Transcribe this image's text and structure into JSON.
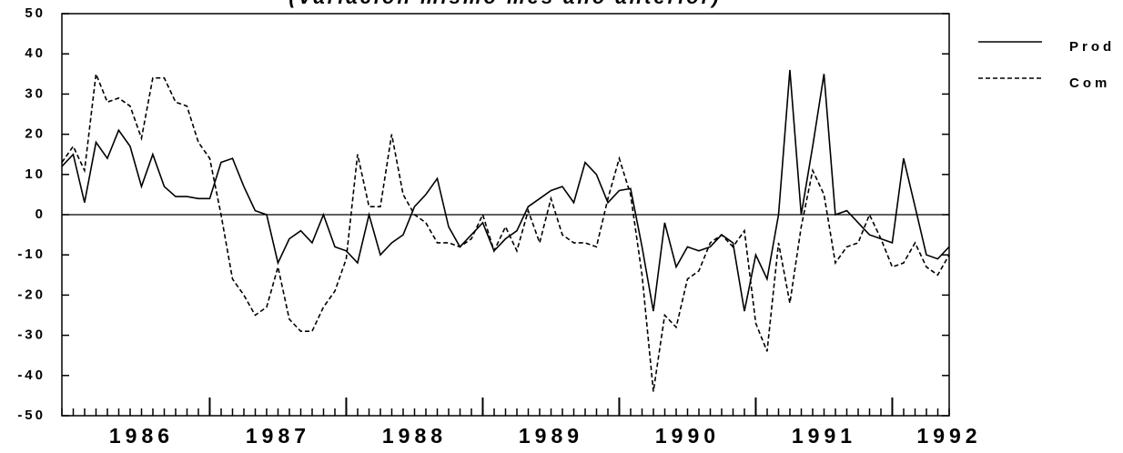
{
  "chart_data": {
    "type": "line",
    "title": "(Variación mismo mes año anterior)",
    "x": [
      1985.917,
      1986,
      1986.083,
      1986.167,
      1986.25,
      1986.333,
      1986.417,
      1986.5,
      1986.583,
      1986.667,
      1986.75,
      1986.833,
      1986.917,
      1987,
      1987.083,
      1987.167,
      1987.25,
      1987.333,
      1987.417,
      1987.5,
      1987.583,
      1987.667,
      1987.75,
      1987.833,
      1987.917,
      1988,
      1988.083,
      1988.167,
      1988.25,
      1988.333,
      1988.417,
      1988.5,
      1988.583,
      1988.667,
      1988.75,
      1988.833,
      1988.917,
      1989,
      1989.083,
      1989.167,
      1989.25,
      1989.333,
      1989.417,
      1989.5,
      1989.583,
      1989.667,
      1989.75,
      1989.833,
      1989.917,
      1990,
      1990.083,
      1990.167,
      1990.25,
      1990.333,
      1990.417,
      1990.5,
      1990.583,
      1990.667,
      1990.75,
      1990.833,
      1990.917,
      1991,
      1991.083,
      1991.167,
      1991.25,
      1991.333,
      1991.417,
      1991.5,
      1991.583,
      1991.667,
      1991.75,
      1991.833,
      1991.917,
      1992,
      1992.083,
      1992.167,
      1992.25,
      1992.333,
      1992.417
    ],
    "series": [
      {
        "name": "Prod",
        "color": "#000000",
        "dash": "solid",
        "values": [
          12,
          15,
          3,
          18,
          14,
          21,
          17,
          7,
          15,
          7,
          4.5,
          4.5,
          4,
          4,
          13,
          14,
          7,
          1,
          0,
          -12,
          -6,
          -4,
          -7,
          0,
          -8,
          -9,
          -12,
          0,
          -10,
          -7,
          -5,
          2,
          5,
          9,
          -3,
          -8,
          -5,
          -2,
          -9,
          -6,
          -4,
          2,
          4,
          6,
          7,
          3,
          13,
          10,
          3,
          6,
          6.5,
          -8,
          -24,
          -2,
          -13,
          -8,
          -9,
          -8,
          -5,
          -7,
          -24,
          -10,
          -16,
          0,
          36,
          0,
          17,
          35,
          0,
          1,
          -2,
          -5,
          -6,
          -7,
          14,
          2,
          -10,
          -11,
          -8
        ]
      },
      {
        "name": "Com",
        "color": "#000000",
        "dash": "dashed",
        "values": [
          13,
          17,
          11,
          35,
          28,
          29,
          27,
          19,
          34,
          34,
          28,
          27,
          18,
          14,
          0,
          -16,
          -20,
          -25,
          -23,
          -13,
          -26,
          -29,
          -29,
          -23,
          -19,
          -11,
          15,
          2,
          2,
          20,
          5,
          0,
          -2,
          -7,
          -7,
          -8,
          -6,
          0,
          -9,
          -3,
          -9,
          1,
          -7,
          4,
          -5,
          -7,
          -7,
          -8,
          4,
          14,
          5,
          -15,
          -44,
          -25,
          -28,
          -16,
          -14,
          -7,
          -5,
          -8,
          -4,
          -27,
          -34,
          -7,
          -22,
          -3,
          11,
          5,
          -12,
          -8,
          -7,
          0,
          -6,
          -13,
          -12,
          -7,
          -13,
          -15,
          -10
        ]
      }
    ],
    "xlim": [
      1985.917,
      1992.417
    ],
    "xticks": [
      {
        "value": 1986.5,
        "label": "1986"
      },
      {
        "value": 1987.5,
        "label": "1987"
      },
      {
        "value": 1988.5,
        "label": "1988"
      },
      {
        "value": 1989.5,
        "label": "1989"
      },
      {
        "value": 1990.5,
        "label": "1990"
      },
      {
        "value": 1991.5,
        "label": "1991"
      },
      {
        "value": 1992.417,
        "label": "1992"
      }
    ],
    "x_year_ticks": [
      1987,
      1988,
      1989,
      1990,
      1991,
      1992
    ],
    "ylim": [
      -50,
      50
    ],
    "yticks": [
      50,
      40,
      30,
      20,
      10,
      0,
      -10,
      -20,
      -30,
      -40,
      -50
    ],
    "legend": "right"
  }
}
